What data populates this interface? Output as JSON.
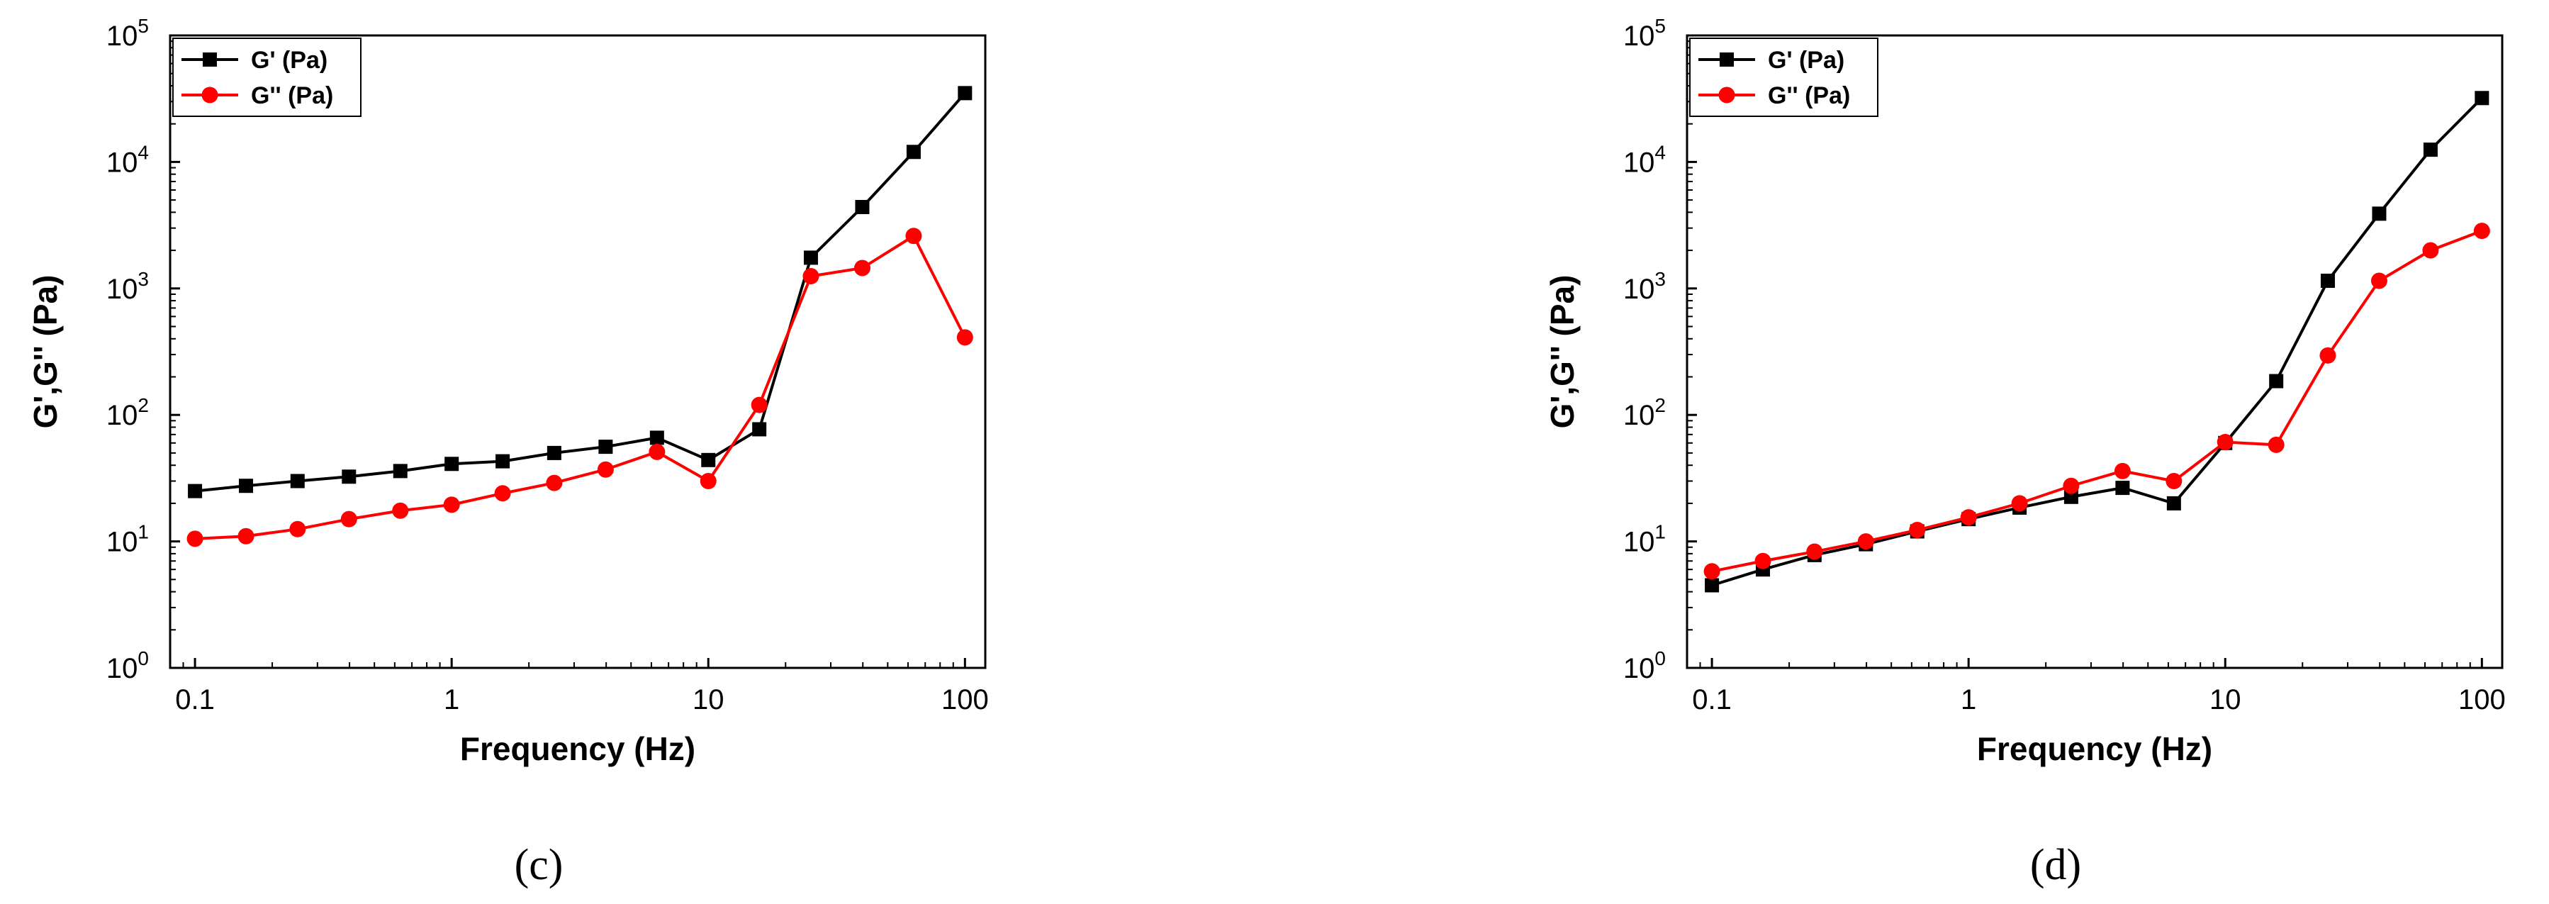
{
  "chart_data": [
    {
      "type": "line",
      "caption": "(c)",
      "xlabel": "Frequency (Hz)",
      "ylabel": "G',G'' (Pa)",
      "x_scale": "log",
      "y_scale": "log",
      "xlim": [
        0.08,
        120
      ],
      "ylim": [
        1,
        100000
      ],
      "x_ticks": [
        {
          "value": 0.1,
          "label": "0.1"
        },
        {
          "value": 1,
          "label": "1"
        },
        {
          "value": 10,
          "label": "10"
        },
        {
          "value": 100,
          "label": "100"
        }
      ],
      "y_ticks": [
        {
          "value": 1,
          "base": "10",
          "exp": "0"
        },
        {
          "value": 10,
          "base": "10",
          "exp": "1"
        },
        {
          "value": 100,
          "base": "10",
          "exp": "2"
        },
        {
          "value": 1000,
          "base": "10",
          "exp": "3"
        },
        {
          "value": 10000,
          "base": "10",
          "exp": "4"
        },
        {
          "value": 100000,
          "base": "10",
          "exp": "5"
        }
      ],
      "legend_position": "top-left",
      "grid": false,
      "x": [
        0.1,
        0.158,
        0.251,
        0.398,
        0.631,
        1.0,
        1.58,
        2.51,
        3.98,
        6.31,
        10.0,
        15.8,
        25.1,
        39.8,
        63.1,
        100
      ],
      "series": [
        {
          "name": "G' (Pa)",
          "color": "#000000",
          "marker": "square",
          "values": [
            25,
            27.5,
            30,
            32.5,
            36,
            41,
            43,
            50,
            56,
            66,
            44,
            77,
            1750,
            4400,
            12000,
            35000
          ]
        },
        {
          "name": "G'' (Pa)",
          "color": "#ff0000",
          "marker": "circle",
          "values": [
            10.5,
            11,
            12.5,
            15,
            17.5,
            19.5,
            24,
            29,
            37,
            51,
            30,
            120,
            1250,
            1450,
            2600,
            410
          ]
        }
      ]
    },
    {
      "type": "line",
      "caption": "(d)",
      "xlabel": "Frequency (Hz)",
      "ylabel": "G',G'' (Pa)",
      "x_scale": "log",
      "y_scale": "log",
      "xlim": [
        0.08,
        120
      ],
      "ylim": [
        1,
        100000
      ],
      "x_ticks": [
        {
          "value": 0.1,
          "label": "0.1"
        },
        {
          "value": 1,
          "label": "1"
        },
        {
          "value": 10,
          "label": "10"
        },
        {
          "value": 100,
          "label": "100"
        }
      ],
      "y_ticks": [
        {
          "value": 1,
          "base": "10",
          "exp": "0"
        },
        {
          "value": 10,
          "base": "10",
          "exp": "1"
        },
        {
          "value": 100,
          "base": "10",
          "exp": "2"
        },
        {
          "value": 1000,
          "base": "10",
          "exp": "3"
        },
        {
          "value": 10000,
          "base": "10",
          "exp": "4"
        },
        {
          "value": 100000,
          "base": "10",
          "exp": "5"
        }
      ],
      "legend_position": "top-left",
      "grid": false,
      "x": [
        0.1,
        0.158,
        0.251,
        0.398,
        0.631,
        1.0,
        1.58,
        2.51,
        3.98,
        6.31,
        10.0,
        15.8,
        25.1,
        39.8,
        63.1,
        100
      ],
      "series": [
        {
          "name": "G' (Pa)",
          "color": "#000000",
          "marker": "square",
          "values": [
            4.5,
            6,
            7.8,
            9.5,
            12,
            15,
            18.5,
            22.5,
            26.5,
            20,
            60,
            185,
            1150,
            3900,
            12500,
            32000
          ]
        },
        {
          "name": "G'' (Pa)",
          "color": "#ff0000",
          "marker": "circle",
          "values": [
            5.8,
            7,
            8.3,
            10,
            12.3,
            15.5,
            20,
            27.5,
            36,
            30,
            61,
            58,
            295,
            1150,
            2000,
            2850
          ]
        }
      ]
    }
  ]
}
